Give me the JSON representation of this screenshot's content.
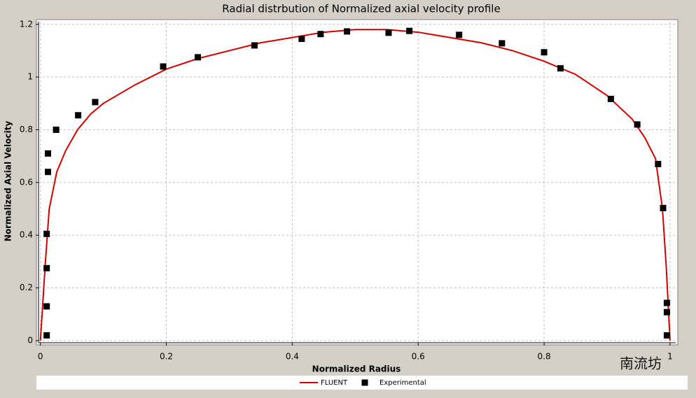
{
  "chart_data": {
    "type": "line-scatter",
    "title": "Radial distrbution of Normalized axial velocity profile",
    "xlabel": "Normalized Radius",
    "ylabel": "Normalized Axial Velocity",
    "xlim": [
      -0.003,
      1.009
    ],
    "ylim": [
      -0.008,
      1.21
    ],
    "xticks": [
      0,
      0.2,
      0.4,
      0.6,
      0.8,
      1
    ],
    "yticks": [
      0,
      0.2,
      0.4,
      0.6,
      0.8,
      1,
      1.2
    ],
    "grid": true,
    "legend": "bottom",
    "series": [
      {
        "name": "FLUENT",
        "kind": "line",
        "color": "#d00000",
        "x": [
          0,
          0.004,
          0.008,
          0.014,
          0.026,
          0.04,
          0.059,
          0.08,
          0.1,
          0.15,
          0.2,
          0.25,
          0.3,
          0.35,
          0.4,
          0.45,
          0.5,
          0.55,
          0.6,
          0.65,
          0.7,
          0.75,
          0.8,
          0.85,
          0.9,
          0.94,
          0.96,
          0.977,
          0.988,
          0.994,
          1.0
        ],
        "values": [
          0,
          0.15,
          0.3,
          0.5,
          0.64,
          0.72,
          0.8,
          0.86,
          0.9,
          0.97,
          1.03,
          1.07,
          1.1,
          1.13,
          1.15,
          1.17,
          1.18,
          1.18,
          1.17,
          1.15,
          1.13,
          1.1,
          1.06,
          1.01,
          0.93,
          0.84,
          0.77,
          0.69,
          0.5,
          0.28,
          0
        ]
      },
      {
        "name": "Experimental",
        "kind": "scatter",
        "color": "#000000",
        "x": [
          0.01,
          0.01,
          0.01,
          0.01,
          0.012,
          0.012,
          0.025,
          0.06,
          0.087,
          0.195,
          0.25,
          0.34,
          0.415,
          0.445,
          0.487,
          0.553,
          0.586,
          0.665,
          0.733,
          0.8,
          0.826,
          0.906,
          0.948,
          0.981,
          0.989,
          0.995,
          0.995,
          0.995
        ],
        "values": [
          0.02,
          0.13,
          0.275,
          0.405,
          0.64,
          0.71,
          0.8,
          0.855,
          0.905,
          1.04,
          1.075,
          1.12,
          1.145,
          1.163,
          1.173,
          1.168,
          1.175,
          1.16,
          1.128,
          1.094,
          1.033,
          0.917,
          0.82,
          0.67,
          0.503,
          0.143,
          0.108,
          0.02
        ]
      }
    ]
  },
  "watermark": "南流坊"
}
